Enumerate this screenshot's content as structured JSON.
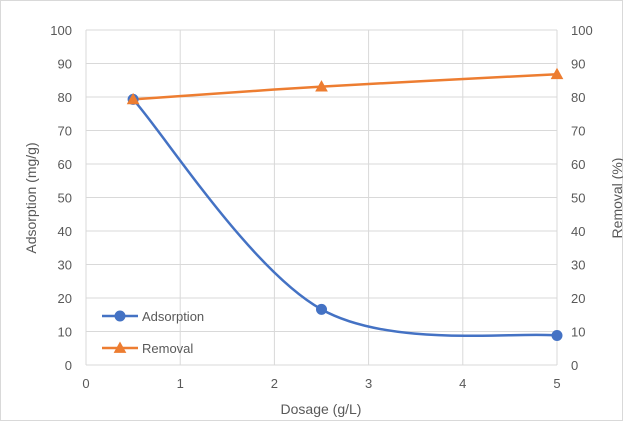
{
  "chart_data": {
    "type": "line",
    "x": [
      0.5,
      2.5,
      5
    ],
    "series": [
      {
        "name": "Adsorption",
        "axis": "left",
        "values": [
          79.3,
          16.6,
          8.8
        ],
        "color": "#4472C4",
        "marker": "circle",
        "smooth": true
      },
      {
        "name": "Removal",
        "axis": "right",
        "values": [
          79.3,
          83.1,
          86.8
        ],
        "color": "#ED7D31",
        "marker": "triangle",
        "smooth": true
      }
    ],
    "xlabel": "Dosage (g/L)",
    "ylabel": "Adsorption (mg/g)",
    "y2label": "Removal (%)",
    "xlim": [
      0,
      5
    ],
    "ylim": [
      0,
      100
    ],
    "y2lim": [
      0,
      100
    ],
    "x_ticks": [
      "0",
      "1",
      "2",
      "3",
      "4",
      "5"
    ],
    "y_ticks": [
      "0",
      "10",
      "20",
      "30",
      "40",
      "50",
      "60",
      "70",
      "80",
      "90",
      "100"
    ],
    "y2_ticks": [
      "0",
      "10",
      "20",
      "30",
      "40",
      "50",
      "60",
      "70",
      "80",
      "90",
      "100"
    ],
    "grid": true,
    "legend": "bottom-left inside",
    "colors": {
      "grid": "#D9D9D9",
      "text": "#595959",
      "border": "#D9D9D9"
    }
  }
}
